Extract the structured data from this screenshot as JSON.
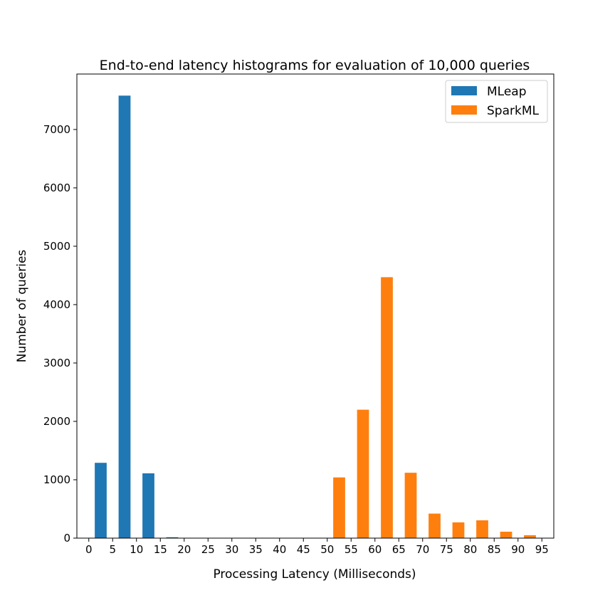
{
  "chart_data": {
    "type": "bar",
    "title": "End-to-end latency histograms for evaluation of 10,000 queries",
    "xlabel": "Processing Latency (Milliseconds)",
    "ylabel": "Number of queries",
    "xlim": [
      -2.5,
      97.5
    ],
    "ylim": [
      0,
      7950
    ],
    "bin_width": 5,
    "bar_width": 2.5,
    "xticks": [
      0,
      5,
      10,
      15,
      20,
      25,
      30,
      35,
      40,
      45,
      50,
      55,
      60,
      65,
      70,
      75,
      80,
      85,
      90,
      95
    ],
    "yticks": [
      0,
      1000,
      2000,
      3000,
      4000,
      5000,
      6000,
      7000
    ],
    "legend_position": "top-right",
    "series": [
      {
        "name": "MLeap",
        "color": "#1f77b4",
        "bin_starts": [
          0,
          5,
          10,
          15,
          20
        ],
        "values": [
          1290,
          7580,
          1110,
          15,
          5
        ]
      },
      {
        "name": "SparkML",
        "color": "#ff7f0e",
        "bin_starts": [
          50,
          55,
          60,
          65,
          70,
          75,
          80,
          85,
          90
        ],
        "values": [
          1040,
          2200,
          4470,
          1120,
          420,
          270,
          305,
          110,
          50
        ]
      }
    ]
  }
}
